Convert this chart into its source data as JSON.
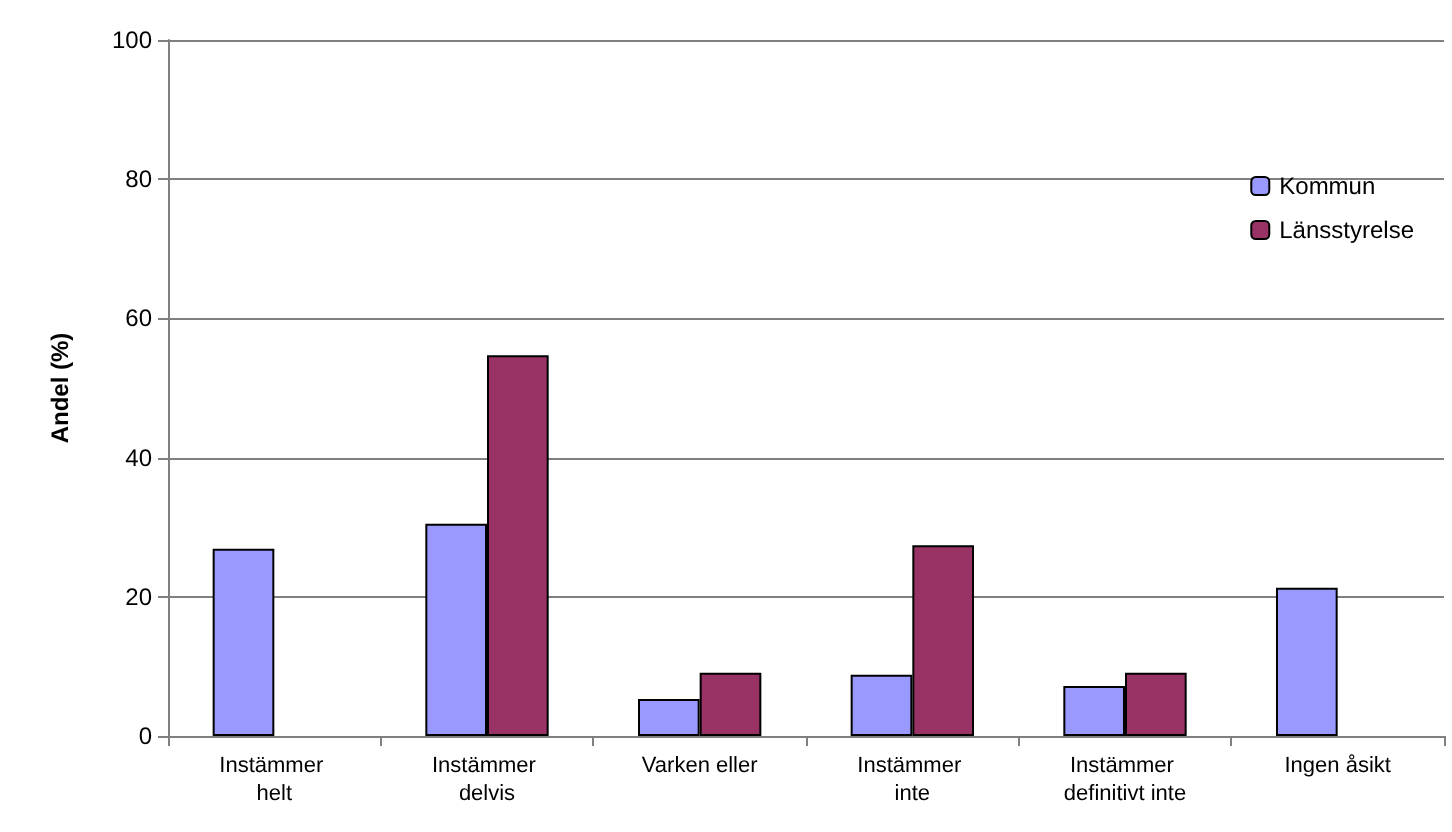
{
  "chart_data": {
    "type": "bar",
    "ylabel": "Andel (%)",
    "categories": [
      "Instämmer helt",
      "Instämmer delvis",
      "Varken eller",
      "Instämmer inte",
      "Instämmer definitivt inte",
      "Ingen åsikt"
    ],
    "series": [
      {
        "name": "Kommun",
        "color": "#9999ff",
        "values": [
          26.9,
          30.5,
          5.3,
          8.8,
          7.2,
          21.3
        ]
      },
      {
        "name": "Länsstyrelse",
        "color": "#993366",
        "values": [
          0,
          54.7,
          9.1,
          27.4,
          9.1,
          0
        ]
      }
    ],
    "ylim": [
      0,
      100
    ],
    "yticks": [
      0,
      20,
      40,
      60,
      80,
      100
    ],
    "grid": "y",
    "legend": "top right"
  }
}
